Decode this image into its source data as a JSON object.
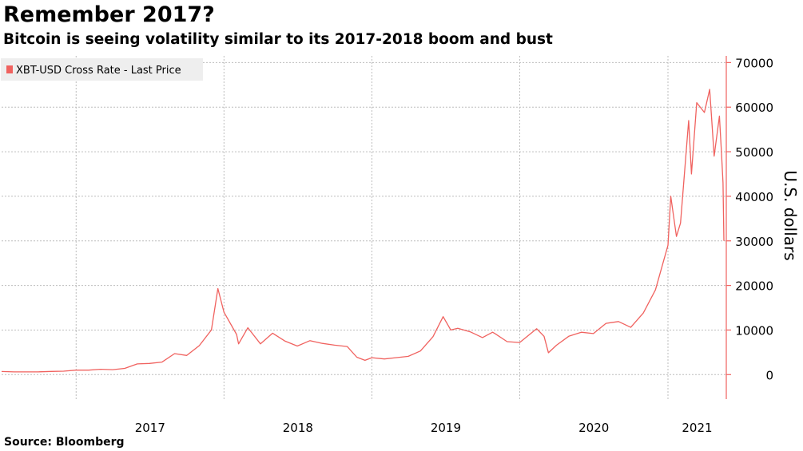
{
  "title": "Remember 2017?",
  "subtitle": "Bitcoin is seeing volatility similar to its 2017-2018 boom and bust",
  "source": "Source: Bloomberg",
  "chart_data": {
    "type": "line",
    "x_tick_labels": [
      "2017",
      "2018",
      "2019",
      "2020",
      "2021"
    ],
    "y_ticks": [
      0,
      10000,
      20000,
      30000,
      40000,
      50000,
      60000,
      70000
    ],
    "ylabel": "U.S. dollars",
    "ylim": [
      -5500,
      71500
    ],
    "xlim": [
      "2016-07-01",
      "2021-05-25"
    ],
    "grid": true,
    "legend_position": "top-left",
    "line_color": "#f0625f",
    "series": [
      {
        "name": "XBT-USD Cross Rate - Last Price",
        "points": [
          [
            "2016-07-01",
            700
          ],
          [
            "2016-08-01",
            600
          ],
          [
            "2016-09-01",
            610
          ],
          [
            "2016-10-01",
            620
          ],
          [
            "2016-11-01",
            720
          ],
          [
            "2016-12-01",
            760
          ],
          [
            "2017-01-01",
            1000
          ],
          [
            "2017-02-01",
            1000
          ],
          [
            "2017-03-01",
            1200
          ],
          [
            "2017-04-01",
            1100
          ],
          [
            "2017-05-01",
            1400
          ],
          [
            "2017-06-01",
            2400
          ],
          [
            "2017-07-01",
            2500
          ],
          [
            "2017-08-01",
            2800
          ],
          [
            "2017-09-01",
            4700
          ],
          [
            "2017-10-01",
            4300
          ],
          [
            "2017-11-01",
            6500
          ],
          [
            "2017-12-01",
            10000
          ],
          [
            "2017-12-17",
            19300
          ],
          [
            "2018-01-01",
            14000
          ],
          [
            "2018-02-01",
            9000
          ],
          [
            "2018-02-06",
            6900
          ],
          [
            "2018-03-01",
            10500
          ],
          [
            "2018-04-01",
            6900
          ],
          [
            "2018-05-01",
            9300
          ],
          [
            "2018-06-01",
            7500
          ],
          [
            "2018-07-01",
            6400
          ],
          [
            "2018-08-01",
            7600
          ],
          [
            "2018-09-01",
            7000
          ],
          [
            "2018-10-01",
            6600
          ],
          [
            "2018-11-01",
            6300
          ],
          [
            "2018-11-25",
            3900
          ],
          [
            "2018-12-15",
            3200
          ],
          [
            "2019-01-01",
            3800
          ],
          [
            "2019-02-01",
            3500
          ],
          [
            "2019-03-01",
            3800
          ],
          [
            "2019-04-01",
            4100
          ],
          [
            "2019-05-01",
            5300
          ],
          [
            "2019-06-01",
            8500
          ],
          [
            "2019-06-26",
            13000
          ],
          [
            "2019-07-15",
            10000
          ],
          [
            "2019-08-01",
            10400
          ],
          [
            "2019-09-01",
            9600
          ],
          [
            "2019-10-01",
            8300
          ],
          [
            "2019-10-26",
            9500
          ],
          [
            "2019-11-01",
            9200
          ],
          [
            "2019-12-01",
            7400
          ],
          [
            "2020-01-01",
            7200
          ],
          [
            "2020-02-12",
            10300
          ],
          [
            "2020-03-01",
            8600
          ],
          [
            "2020-03-12",
            4900
          ],
          [
            "2020-04-01",
            6600
          ],
          [
            "2020-05-01",
            8600
          ],
          [
            "2020-06-01",
            9500
          ],
          [
            "2020-07-01",
            9200
          ],
          [
            "2020-08-01",
            11500
          ],
          [
            "2020-09-01",
            11900
          ],
          [
            "2020-10-01",
            10600
          ],
          [
            "2020-11-01",
            13800
          ],
          [
            "2020-12-01",
            19000
          ],
          [
            "2021-01-01",
            29000
          ],
          [
            "2021-01-08",
            40000
          ],
          [
            "2021-01-22",
            31000
          ],
          [
            "2021-02-01",
            34000
          ],
          [
            "2021-02-21",
            57000
          ],
          [
            "2021-02-28",
            45000
          ],
          [
            "2021-03-13",
            61000
          ],
          [
            "2021-04-01",
            58800
          ],
          [
            "2021-04-14",
            64000
          ],
          [
            "2021-04-25",
            49000
          ],
          [
            "2021-05-08",
            58000
          ],
          [
            "2021-05-13",
            50000
          ],
          [
            "2021-05-17",
            43000
          ],
          [
            "2021-05-19",
            30000
          ]
        ]
      }
    ]
  }
}
